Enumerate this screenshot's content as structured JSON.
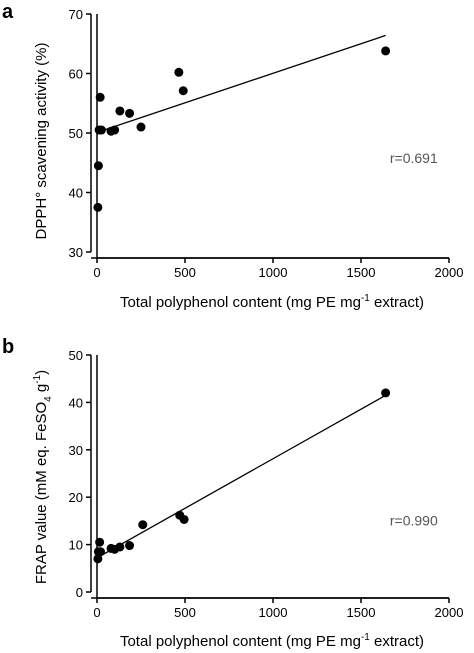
{
  "chart_data": [
    {
      "panel": "a",
      "type": "scatter",
      "xlabel": "Total polyphenol content (mg PE mg",
      "xlabel_sup": "-1",
      "xlabel_tail": " extract)",
      "ylabel": "DPPH° scavening activity (%)",
      "xlim": [
        0,
        2000
      ],
      "ylim": [
        30,
        70
      ],
      "xticks": [
        "0",
        "500",
        "1000",
        "1500",
        "2000"
      ],
      "yticks": [
        "30",
        "40",
        "50",
        "60",
        "70"
      ],
      "x": [
        5,
        8,
        12,
        18,
        25,
        80,
        100,
        130,
        185,
        250,
        465,
        490,
        1640
      ],
      "y": [
        37.5,
        44.5,
        50.5,
        56,
        50.5,
        50.3,
        50.5,
        53.7,
        53.3,
        51,
        60.2,
        57.1,
        63.8
      ],
      "regression": {
        "x": [
          0,
          1640
        ],
        "y": [
          50.1,
          66.4
        ]
      },
      "annotation": "r=0.691",
      "annotation_pos": {
        "x": 1800,
        "y": 45
      },
      "grid": false,
      "marker_color": "#000000"
    },
    {
      "panel": "b",
      "type": "scatter",
      "xlabel": "Total polyphenol content (mg PE mg",
      "xlabel_sup": "-1",
      "xlabel_tail": " extract)",
      "ylabel": "FRAP value  (mM eq. FeSO",
      "ylabel_sub": "4",
      "ylabel_tail": " g",
      "ylabel_sup": "-1",
      "ylabel_end": ")",
      "xlim": [
        0,
        2000
      ],
      "ylim": [
        0,
        50
      ],
      "xticks": [
        "0",
        "500",
        "1000",
        "1500",
        "2000"
      ],
      "yticks": [
        "0",
        "10",
        "20",
        "30",
        "40",
        "50"
      ],
      "x": [
        5,
        8,
        15,
        20,
        80,
        100,
        130,
        185,
        260,
        470,
        495,
        1640
      ],
      "y": [
        7,
        8.5,
        10.5,
        8.5,
        9.2,
        9,
        9.5,
        9.8,
        14.2,
        16.2,
        15.3,
        42
      ],
      "regression": {
        "x": [
          0,
          1640
        ],
        "y": [
          7.2,
          41.5
        ]
      },
      "annotation": "r=0.990",
      "annotation_pos": {
        "x": 1800,
        "y": 14
      },
      "grid": false,
      "marker_color": "#000000"
    }
  ]
}
